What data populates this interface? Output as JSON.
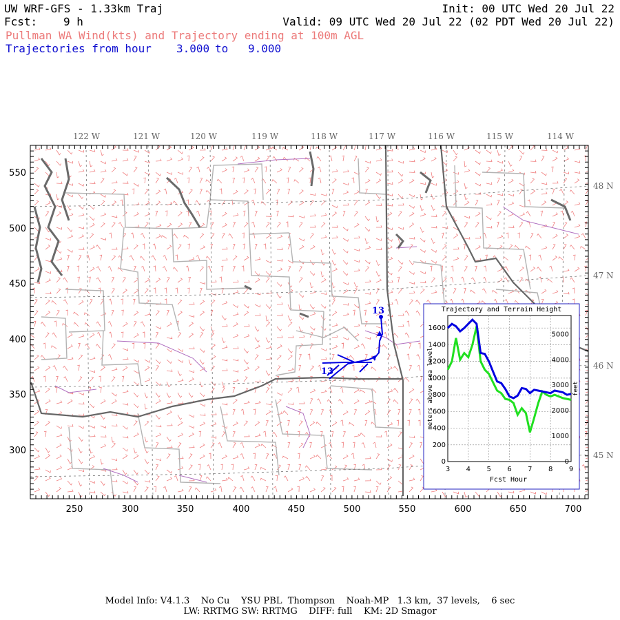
{
  "header": {
    "model_title": "UW WRF-GFS - 1.33km Traj",
    "init": "Init: 00 UTC Wed 20 Jul 22",
    "fcst_label": "Fcst:",
    "fcst_value": "9 h",
    "valid": "Valid: 09 UTC Wed 20 Jul 22 (02 PDT Wed 20 Jul 22)",
    "subtitle": "Pullman WA Wind(kts) and Trajectory ending at 100m AGL",
    "traj_range_label": "Trajectories from hour",
    "traj_start": "3.000",
    "traj_to": "to",
    "traj_end": "9.000"
  },
  "map": {
    "lon_labels": [
      "122 W",
      "121 W",
      "120 W",
      "119 W",
      "118 W",
      "117 W",
      "116 W",
      "115 W",
      "114 W"
    ],
    "lat_labels": [
      "48 N",
      "47 N",
      "46 N",
      "45 N"
    ],
    "x_ticks": [
      "250",
      "300",
      "350",
      "400",
      "450",
      "500",
      "550",
      "600",
      "650",
      "700"
    ],
    "y_ticks": [
      "550",
      "500",
      "450",
      "400",
      "350",
      "300"
    ],
    "traj_label_start": "13",
    "traj_label_end": "13",
    "colors": {
      "wind": "#f08080",
      "roads": "#aaaaaa",
      "water": "#6f6f6f",
      "traj": "#0000e0",
      "counties": "#b070c0"
    }
  },
  "inset": {
    "title": "Trajectory and Terrain Height",
    "xlabel": "Fcst Hour",
    "ylabel_left": "meters above sea level",
    "ylabel_right": "feet",
    "left_ticks": [
      "0",
      "200",
      "400",
      "600",
      "800",
      "1000",
      "1200",
      "1400",
      "1600"
    ],
    "right_ticks": [
      "0",
      "1000",
      "2000",
      "3000",
      "4000",
      "5000"
    ],
    "x_ticks": [
      "3",
      "4",
      "5",
      "6",
      "7",
      "8",
      "9"
    ]
  },
  "chart_data": {
    "type": "line",
    "title": "Trajectory and Terrain Height",
    "xlabel": "Fcst Hour",
    "ylabel": "meters above sea level",
    "y2label": "feet",
    "xlim": [
      3,
      9
    ],
    "ylim": [
      0,
      1750
    ],
    "grid": true,
    "series": [
      {
        "color": "#0000e0",
        "x": [
          3.0,
          3.2,
          3.4,
          3.6,
          3.8,
          4.0,
          4.2,
          4.4,
          4.6,
          4.8,
          5.0,
          5.2,
          5.4,
          5.6,
          5.8,
          6.0,
          6.2,
          6.4,
          6.6,
          6.8,
          7.0,
          7.2,
          7.4,
          7.6,
          7.8,
          8.0,
          8.2,
          8.4,
          8.6,
          8.8,
          9.0
        ],
        "y": [
          1600,
          1650,
          1620,
          1560,
          1600,
          1650,
          1700,
          1650,
          1300,
          1290,
          1200,
          1080,
          960,
          940,
          870,
          780,
          760,
          790,
          880,
          870,
          820,
          860,
          850,
          840,
          830,
          820,
          850,
          840,
          830,
          800,
          810
        ]
      },
      {
        "color": "#20e020",
        "x": [
          3.0,
          3.2,
          3.4,
          3.6,
          3.8,
          4.0,
          4.2,
          4.4,
          4.6,
          4.8,
          5.0,
          5.2,
          5.4,
          5.6,
          5.8,
          6.0,
          6.2,
          6.4,
          6.6,
          6.8,
          7.0,
          7.2,
          7.4,
          7.6,
          7.8,
          8.0,
          8.2,
          8.4,
          8.6,
          8.8,
          9.0
        ],
        "y": [
          1100,
          1200,
          1480,
          1220,
          1300,
          1250,
          1400,
          1620,
          1200,
          1100,
          1050,
          950,
          850,
          820,
          750,
          740,
          700,
          560,
          640,
          580,
          350,
          520,
          700,
          840,
          800,
          780,
          800,
          780,
          760,
          750,
          740
        ]
      }
    ]
  },
  "footer": {
    "line1": "Model Info: V4.1.3    No Cu    YSU PBL  Thompson    Noah-MP   1.3 km,  37 levels,    6 sec",
    "line2": "LW: RRTMG SW: RRTMG    DIFF: full    KM: 2D Smagor"
  }
}
